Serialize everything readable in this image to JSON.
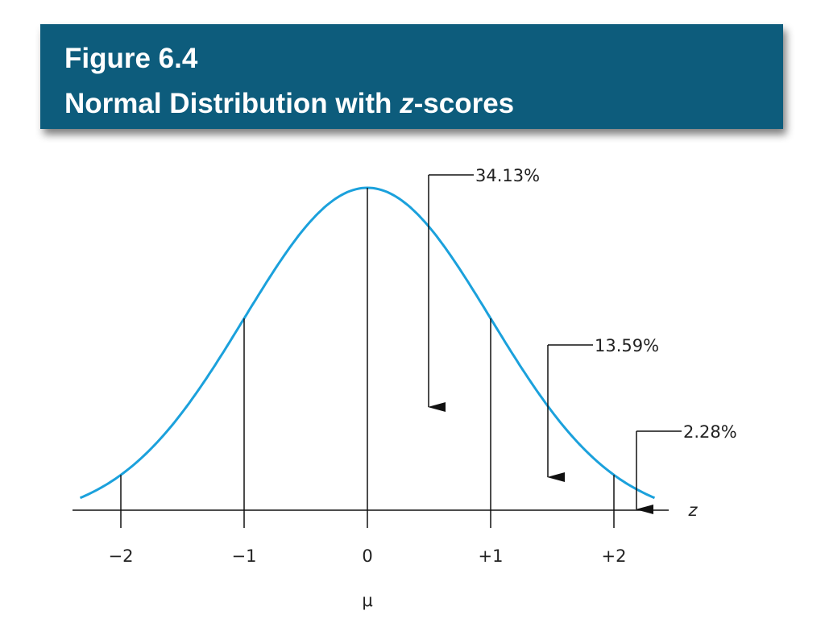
{
  "chart_data": {
    "type": "normal-curve",
    "title": [
      "Figure 6.4",
      [
        "Normal Distribution with ",
        "z",
        "-scores"
      ]
    ],
    "x_label": "z",
    "mean_label": "μ",
    "color": "#1ba1dc",
    "xlim": [
      -2.33,
      2.33
    ],
    "xticks": [
      {
        "value": -2,
        "label": "−2"
      },
      {
        "value": -1,
        "label": "−1"
      },
      0,
      {
        "value": 1,
        "label": "+1"
      },
      {
        "value": 2,
        "label": "+2"
      }
    ],
    "values": [
      34.13,
      13.59,
      2.28
    ],
    "value_labels": [
      "34.13%",
      "13.59%",
      "2.28%"
    ]
  }
}
